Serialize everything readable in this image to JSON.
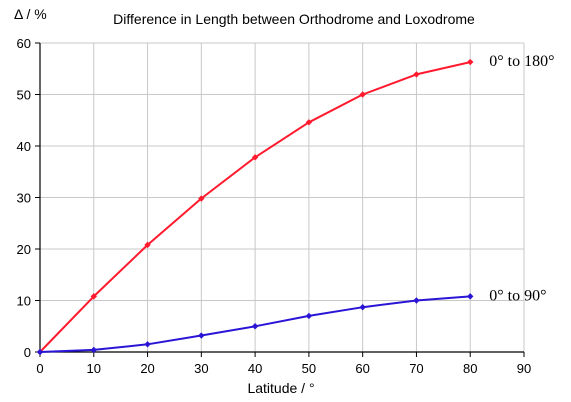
{
  "chart_data": {
    "type": "line",
    "title": "Difference in Length between Orthodrome and Loxodrome",
    "xlabel": "Latitude / °",
    "ylabel": "Δ / %",
    "xlim": [
      0,
      90
    ],
    "ylim": [
      0,
      60
    ],
    "xticks": [
      0,
      10,
      20,
      30,
      40,
      50,
      60,
      70,
      80,
      90
    ],
    "yticks": [
      0,
      10,
      20,
      30,
      40,
      50,
      60
    ],
    "grid": true,
    "legend": "inline labels at line ends",
    "x": [
      0,
      10,
      20,
      30,
      40,
      50,
      60,
      70,
      80
    ],
    "series": [
      {
        "name": "0° to 180°",
        "color": "#ff1a2e",
        "values": [
          0,
          10.8,
          20.8,
          29.8,
          37.8,
          44.6,
          50.0,
          53.9,
          56.3
        ]
      },
      {
        "name": "0° to 90°",
        "color": "#2a14d6",
        "values": [
          0,
          0.4,
          1.5,
          3.2,
          5.0,
          7.0,
          8.7,
          10.0,
          10.8
        ]
      }
    ]
  }
}
